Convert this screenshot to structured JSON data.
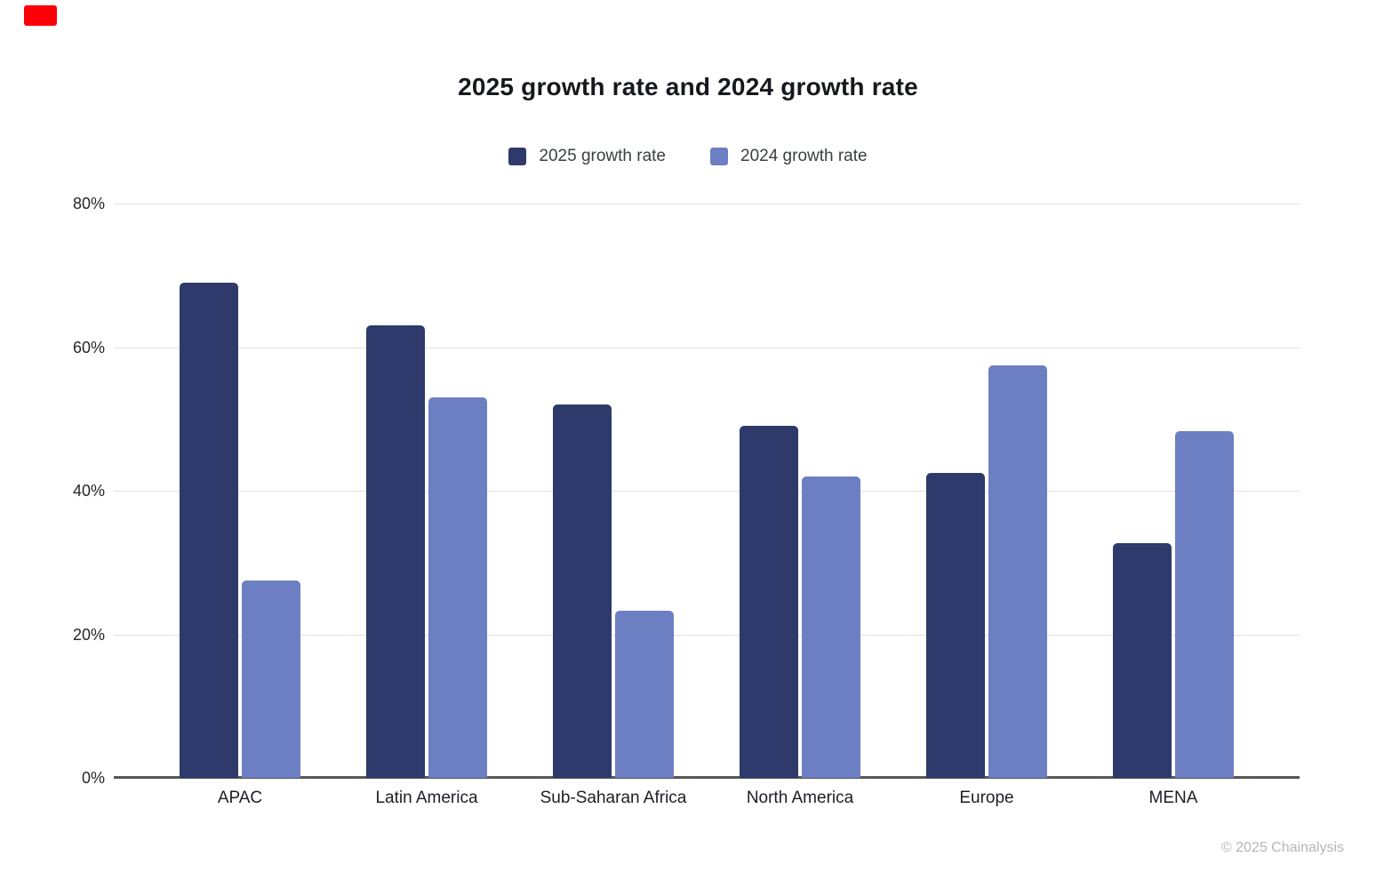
{
  "page": {
    "copyright": "© 2025 Chainalysis",
    "recording_indicator_color": "#fb0006"
  },
  "chart_data": {
    "type": "bar",
    "title": "2025 growth rate and 2024 growth rate",
    "categories": [
      "APAC",
      "Latin America",
      "Sub-Saharan Africa",
      "North America",
      "Europe",
      "MENA"
    ],
    "series": [
      {
        "name": "2025 growth rate",
        "color": "#2d3a6b",
        "values": [
          69,
          63,
          52,
          49,
          42.5,
          32.7
        ]
      },
      {
        "name": "2024 growth rate",
        "color": "#6d7fc3",
        "values": [
          27.5,
          53,
          23.3,
          42,
          57.5,
          48.3
        ]
      }
    ],
    "ylabel": "",
    "xlabel": "",
    "ylim": [
      0,
      80
    ],
    "y_tick_values": [
      80,
      60,
      40,
      20,
      0
    ],
    "y_tick_suffix": "%",
    "grid": true,
    "legend_position": "top",
    "gridline_color": "#e2e2e2",
    "axis_line_color": "#565656"
  }
}
